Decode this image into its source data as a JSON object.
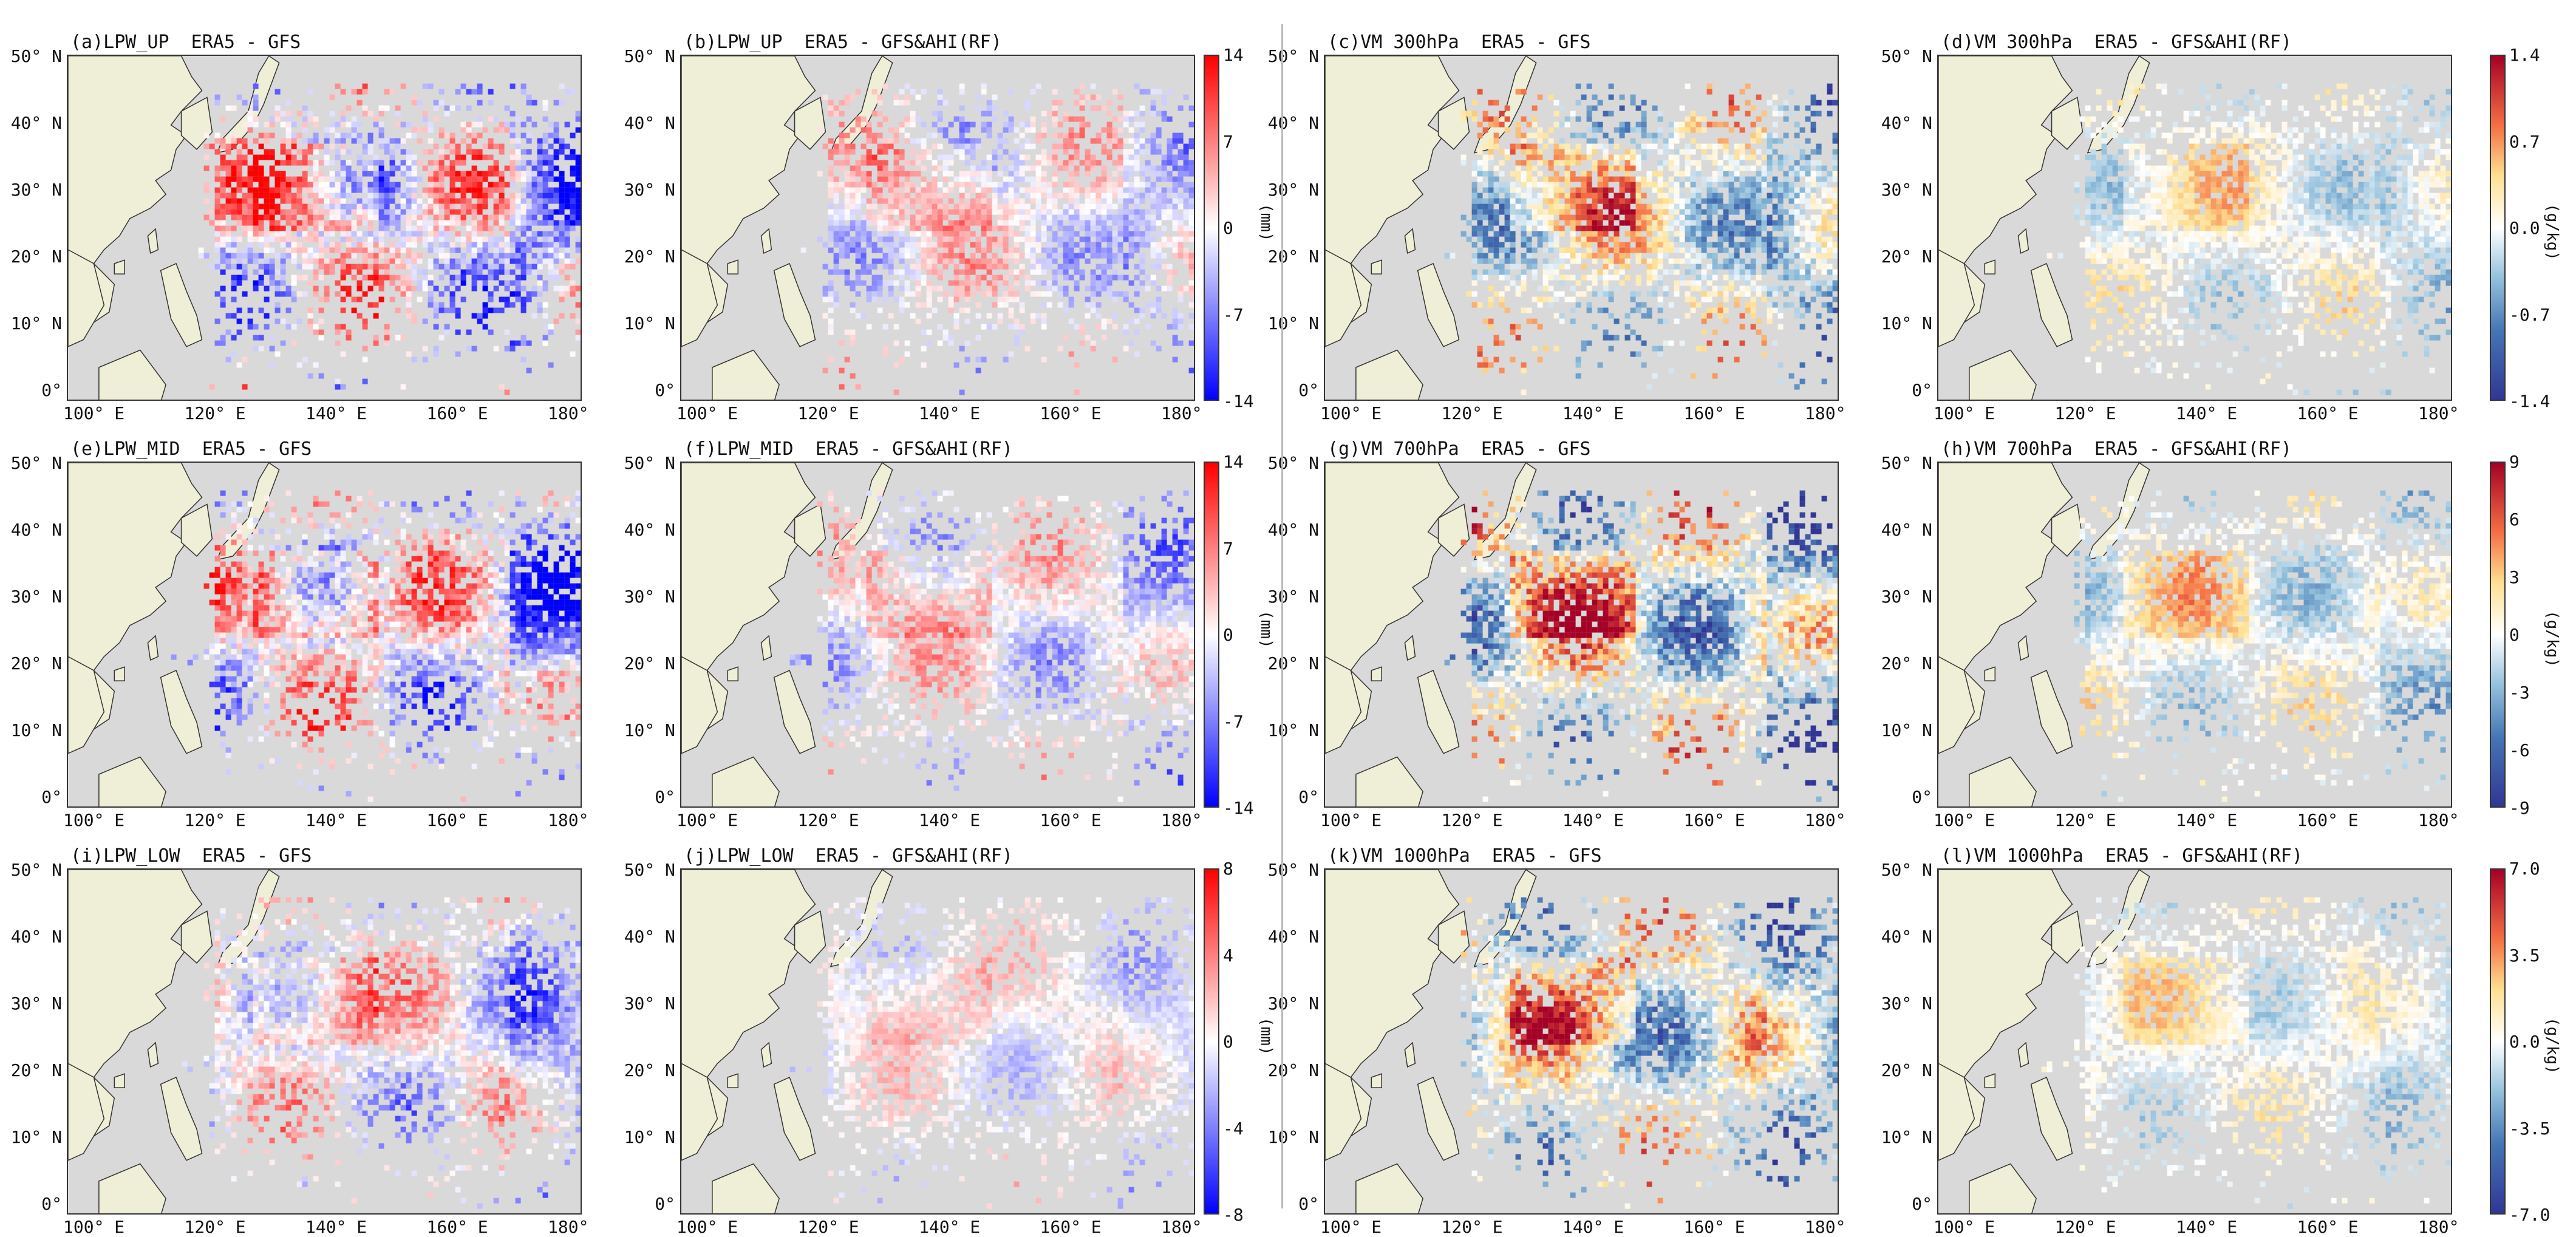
{
  "figure": {
    "y_ticks": [
      "50° N",
      "40° N",
      "30° N",
      "20° N",
      "10° N",
      "0°"
    ],
    "x_ticks": [
      "100° E",
      "120° E",
      "140° E",
      "160° E",
      "180°"
    ],
    "colors": {
      "land": "#efeed6",
      "ocean": "#d9d9d9",
      "noData": "#ffffff"
    },
    "rows": [
      {
        "panels": [
          {
            "title": "(a)LPW_UP  ERA5 - GFS",
            "scheme": "bwr",
            "intensity": 1.0
          },
          {
            "title": "(b)LPW_UP  ERA5 - GFS&AHI(RF)",
            "scheme": "bwr",
            "intensity": 0.55
          },
          {
            "title": "(c)VM 300hPa  ERA5 - GFS",
            "scheme": "rdylbu",
            "intensity": 0.7
          },
          {
            "title": "(d)VM 300hPa  ERA5 - GFS&AHI(RF)",
            "scheme": "rdylbu",
            "intensity": 0.35
          }
        ],
        "colorbars": [
          {
            "scheme": "bwr",
            "ticks": [
              "14",
              "7",
              "0",
              "-7",
              "-14"
            ],
            "unit": "(mm)"
          },
          {
            "scheme": "rdylbu",
            "ticks": [
              "1.4",
              "0.7",
              "0.0",
              "-0.7",
              "-1.4"
            ],
            "unit": "(g/kg)"
          }
        ]
      },
      {
        "panels": [
          {
            "title": "(e)LPW_MID  ERA5 - GFS",
            "scheme": "bwr",
            "intensity": 1.0
          },
          {
            "title": "(f)LPW_MID  ERA5 - GFS&AHI(RF)",
            "scheme": "bwr",
            "intensity": 0.55
          },
          {
            "title": "(g)VM 700hPa  ERA5 - GFS",
            "scheme": "rdylbu",
            "intensity": 0.9
          },
          {
            "title": "(h)VM 700hPa  ERA5 - GFS&AHI(RF)",
            "scheme": "rdylbu",
            "intensity": 0.4
          }
        ],
        "colorbars": [
          {
            "scheme": "bwr",
            "ticks": [
              "14",
              "7",
              "0",
              "-7",
              "-14"
            ],
            "unit": "(mm)"
          },
          {
            "scheme": "rdylbu",
            "ticks": [
              "9",
              "6",
              "3",
              "0",
              "-3",
              "-6",
              "-9"
            ],
            "unit": "(g/kg)"
          }
        ]
      },
      {
        "panels": [
          {
            "title": "(i)LPW_LOW  ERA5 - GFS",
            "scheme": "bwr",
            "intensity": 0.7
          },
          {
            "title": "(j)LPW_LOW  ERA5 - GFS&AHI(RF)",
            "scheme": "bwr",
            "intensity": 0.35
          },
          {
            "title": "(k)VM 1000hPa  ERA5 - GFS",
            "scheme": "rdylbu",
            "intensity": 0.8
          },
          {
            "title": "(l)VM 1000hPa  ERA5 - GFS&AHI(RF)",
            "scheme": "rdylbu",
            "intensity": 0.3
          }
        ],
        "colorbars": [
          {
            "scheme": "bwr",
            "ticks": [
              "8",
              "4",
              "0",
              "-4",
              "-8"
            ],
            "unit": "(mm)"
          },
          {
            "scheme": "rdylbu",
            "ticks": [
              "7.0",
              "3.5",
              "0.0",
              "-3.5",
              "-7.0"
            ],
            "unit": "(g/kg)"
          }
        ]
      }
    ]
  }
}
